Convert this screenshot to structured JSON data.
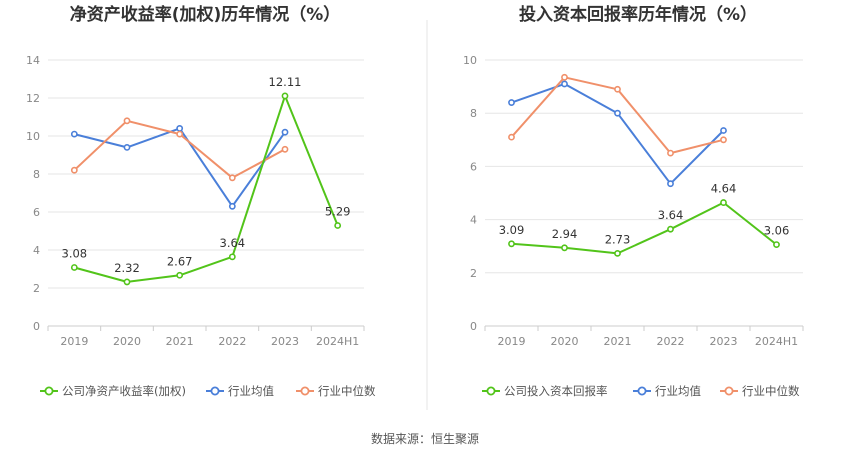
{
  "source_text": "数据来源：恒生聚源",
  "colors": {
    "company": "#52c41a",
    "industry_avg": "#4a7fd9",
    "industry_median": "#f0906a"
  },
  "chart_data": [
    {
      "type": "line",
      "title": "净资产收益率(加权)历年情况（%）",
      "categories": [
        "2019",
        "2020",
        "2021",
        "2022",
        "2023",
        "2024H1"
      ],
      "ylim": [
        0,
        14
      ],
      "yticks": [
        0,
        2,
        4,
        6,
        8,
        10,
        12,
        14
      ],
      "grid": true,
      "legend_position": "bottom",
      "series": [
        {
          "name": "公司净资产收益率(加权)",
          "color_key": "company",
          "values": [
            3.08,
            2.32,
            2.67,
            3.64,
            12.11,
            5.29
          ],
          "labels": [
            "3.08",
            "2.32",
            "2.67",
            "3.64",
            "12.11",
            "5.29"
          ]
        },
        {
          "name": "行业均值",
          "color_key": "industry_avg",
          "values": [
            10.1,
            9.4,
            10.4,
            6.3,
            10.2,
            null
          ]
        },
        {
          "name": "行业中位数",
          "color_key": "industry_median",
          "values": [
            8.2,
            10.8,
            10.1,
            7.8,
            9.3,
            null
          ]
        }
      ]
    },
    {
      "type": "line",
      "title": "投入资本回报率历年情况（%）",
      "categories": [
        "2019",
        "2020",
        "2021",
        "2022",
        "2023",
        "2024H1"
      ],
      "ylim": [
        0,
        10
      ],
      "yticks": [
        0,
        2,
        4,
        6,
        8,
        10
      ],
      "grid": true,
      "legend_position": "bottom",
      "series": [
        {
          "name": "公司投入资本回报率",
          "color_key": "company",
          "values": [
            3.09,
            2.94,
            2.73,
            3.64,
            4.64,
            3.06
          ],
          "labels": [
            "3.09",
            "2.94",
            "2.73",
            "3.64",
            "4.64",
            "3.06"
          ]
        },
        {
          "name": "行业均值",
          "color_key": "industry_avg",
          "values": [
            8.4,
            9.1,
            8.0,
            5.35,
            7.35,
            null
          ]
        },
        {
          "name": "行业中位数",
          "color_key": "industry_median",
          "values": [
            7.1,
            9.35,
            8.9,
            6.5,
            7.0,
            null
          ]
        }
      ]
    }
  ]
}
